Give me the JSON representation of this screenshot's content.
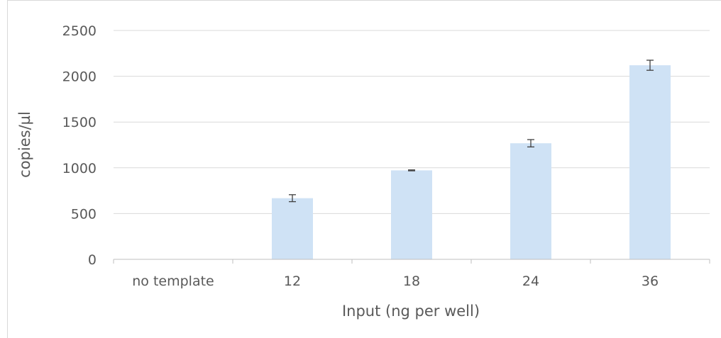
{
  "chart_data": {
    "type": "bar",
    "categories": [
      "no template",
      "12",
      "18",
      "24",
      "36"
    ],
    "values": [
      3,
      668,
      972,
      1268,
      2120
    ],
    "error": [
      0,
      38,
      5,
      40,
      55
    ],
    "xlabel": "Input (ng per well)",
    "ylabel": "copies/µl",
    "ylim": [
      0,
      2500
    ],
    "yticks": [
      0,
      500,
      1000,
      1500,
      2000,
      2500
    ],
    "grid": true,
    "bar_color": "#cfe2f5",
    "error_color": "#404040",
    "grid_color": "#d9d9d9"
  }
}
